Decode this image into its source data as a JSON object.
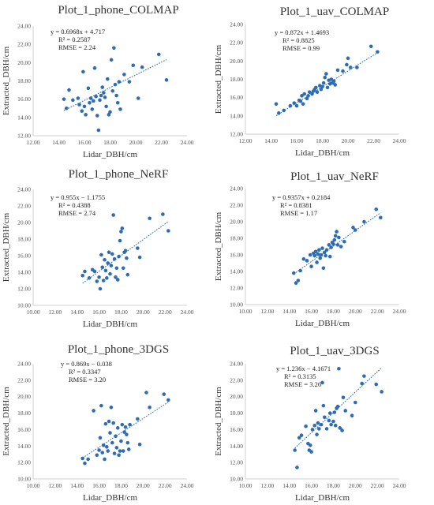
{
  "chart_data": [
    {
      "type": "scatter",
      "title": "Plot_1_phone_COLMAP",
      "xlabel": "Lidar_DBH/cm",
      "ylabel": "Extracted_DBH/cm",
      "xlim": [
        12,
        24
      ],
      "ylim": [
        12,
        24
      ],
      "xticks": [
        "12.00",
        "14.00",
        "16.00",
        "18.00",
        "20.00",
        "22.00",
        "24.00"
      ],
      "yticks": [
        "12.00",
        "14.00",
        "16.00",
        "18.00",
        "20.00",
        "22.00",
        "24.00"
      ],
      "equation": "y = 0.6968x + 4.717",
      "r2": "R² = 0.2587",
      "rmse": "RMSE = 2.24",
      "trendline": {
        "slope": 0.6968,
        "intercept": 4.717
      },
      "grid": false,
      "legend": "none",
      "points": [
        [
          14.4,
          16.0
        ],
        [
          14.6,
          15.0
        ],
        [
          14.8,
          17.0
        ],
        [
          15.1,
          15.9
        ],
        [
          15.5,
          16.1
        ],
        [
          15.6,
          15.4
        ],
        [
          15.8,
          14.7
        ],
        [
          15.9,
          19.0
        ],
        [
          16.0,
          15.2
        ],
        [
          16.1,
          14.3
        ],
        [
          16.3,
          17.2
        ],
        [
          16.4,
          15.6
        ],
        [
          16.5,
          16.1
        ],
        [
          16.6,
          14.9
        ],
        [
          16.7,
          15.8
        ],
        [
          16.8,
          19.4
        ],
        [
          16.9,
          16.3
        ],
        [
          17.0,
          14.2
        ],
        [
          17.1,
          12.6
        ],
        [
          17.2,
          15.9
        ],
        [
          17.3,
          16.4
        ],
        [
          17.4,
          17.3
        ],
        [
          17.5,
          16.7
        ],
        [
          17.6,
          16.2
        ],
        [
          17.7,
          15.2
        ],
        [
          17.8,
          18.2
        ],
        [
          17.9,
          14.3
        ],
        [
          18.0,
          14.6
        ],
        [
          18.1,
          20.3
        ],
        [
          18.2,
          16.9
        ],
        [
          18.3,
          21.6
        ],
        [
          18.4,
          17.6
        ],
        [
          18.5,
          16.4
        ],
        [
          18.6,
          15.6
        ],
        [
          18.7,
          17.9
        ],
        [
          18.8,
          14.9
        ],
        [
          19.5,
          17.9
        ],
        [
          19.8,
          19.7
        ],
        [
          20.2,
          16.1
        ],
        [
          20.5,
          19.5
        ],
        [
          21.8,
          20.9
        ],
        [
          22.4,
          18.1
        ],
        [
          19.1,
          18.7
        ]
      ]
    },
    {
      "type": "scatter",
      "title": "Plot_1_uav_COLMAP",
      "xlabel": "Lidar_DBH/cm",
      "ylabel": "Extracted_DBH/cm",
      "xlim": [
        12,
        24
      ],
      "ylim": [
        12,
        24
      ],
      "xticks": [
        "12.00",
        "14.00",
        "16.00",
        "18.00",
        "20.00",
        "22.00",
        "24.00"
      ],
      "yticks": [
        "12.00",
        "14.00",
        "16.00",
        "18.00",
        "20.00",
        "22.00",
        "24.00"
      ],
      "equation": "y = 0.872x + 1.4693",
      "r2": "R² = 0.8825",
      "rmse": "RMSE = 0.99",
      "trendline": {
        "slope": 0.872,
        "intercept": 1.4693
      },
      "grid": false,
      "legend": "none",
      "points": [
        [
          14.4,
          15.3
        ],
        [
          14.6,
          14.3
        ],
        [
          15.0,
          14.6
        ],
        [
          15.5,
          15.1
        ],
        [
          15.8,
          15.4
        ],
        [
          16.0,
          15.1
        ],
        [
          16.2,
          15.7
        ],
        [
          16.4,
          16.2
        ],
        [
          16.5,
          15.3
        ],
        [
          16.6,
          16.4
        ],
        [
          16.8,
          15.9
        ],
        [
          16.9,
          16.2
        ],
        [
          17.0,
          16.6
        ],
        [
          17.2,
          16.4
        ],
        [
          17.4,
          16.9
        ],
        [
          17.5,
          17.1
        ],
        [
          17.6,
          16.6
        ],
        [
          17.8,
          17.3
        ],
        [
          17.9,
          16.9
        ],
        [
          18.0,
          17.2
        ],
        [
          18.1,
          17.6
        ],
        [
          18.2,
          18.2
        ],
        [
          18.3,
          18.6
        ],
        [
          18.4,
          17.1
        ],
        [
          18.5,
          17.9
        ],
        [
          18.6,
          17.5
        ],
        [
          18.7,
          18.0
        ],
        [
          18.8,
          17.6
        ],
        [
          18.9,
          17.8
        ],
        [
          19.0,
          17.4
        ],
        [
          19.2,
          19.0
        ],
        [
          19.6,
          18.9
        ],
        [
          19.9,
          19.6
        ],
        [
          20.0,
          20.3
        ],
        [
          20.2,
          19.3
        ],
        [
          20.7,
          19.3
        ],
        [
          21.8,
          21.6
        ],
        [
          22.3,
          21.0
        ],
        [
          17.3,
          16.7
        ],
        [
          16.3,
          15.6
        ]
      ]
    },
    {
      "type": "scatter",
      "title": "Plot_1_phone_NeRF",
      "xlabel": "Lidar_DBH/cm",
      "ylabel": "Extracted_DBH/cm",
      "xlim": [
        10,
        24
      ],
      "ylim": [
        10,
        24
      ],
      "xticks": [
        "10.00",
        "12.00",
        "14.00",
        "16.00",
        "18.00",
        "20.00",
        "22.00",
        "24.00"
      ],
      "yticks": [
        "10.00",
        "12.00",
        "14.00",
        "16.00",
        "18.00",
        "20.00",
        "22.00",
        "24.00"
      ],
      "equation": "y = 0.955x − 1.1755",
      "r2": "R² = 0.4388",
      "rmse": "RMSE = 2.74",
      "trendline": {
        "slope": 0.955,
        "intercept": -1.1755
      },
      "grid": false,
      "legend": "none",
      "points": [
        [
          14.5,
          13.6
        ],
        [
          14.7,
          14.1
        ],
        [
          15.1,
          13.3
        ],
        [
          15.4,
          14.3
        ],
        [
          15.6,
          14.1
        ],
        [
          15.8,
          12.9
        ],
        [
          16.0,
          13.4
        ],
        [
          16.1,
          12.0
        ],
        [
          16.2,
          16.1
        ],
        [
          16.3,
          14.6
        ],
        [
          16.4,
          13.0
        ],
        [
          16.5,
          15.5
        ],
        [
          16.6,
          14.2
        ],
        [
          16.7,
          13.3
        ],
        [
          16.8,
          15.1
        ],
        [
          16.9,
          16.4
        ],
        [
          17.0,
          13.8
        ],
        [
          17.1,
          14.8
        ],
        [
          17.2,
          16.2
        ],
        [
          17.3,
          20.9
        ],
        [
          17.5,
          13.4
        ],
        [
          17.6,
          14.5
        ],
        [
          17.7,
          13.1
        ],
        [
          17.8,
          15.9
        ],
        [
          17.9,
          17.8
        ],
        [
          18.0,
          18.9
        ],
        [
          18.1,
          19.3
        ],
        [
          18.2,
          14.5
        ],
        [
          18.3,
          16.4
        ],
        [
          18.5,
          15.7
        ],
        [
          18.6,
          13.7
        ],
        [
          19.5,
          16.9
        ],
        [
          19.7,
          15.8
        ],
        [
          20.6,
          20.5
        ],
        [
          21.8,
          21.0
        ],
        [
          22.3,
          19.0
        ],
        [
          17.4,
          15.6
        ],
        [
          18.4,
          16.6
        ]
      ]
    },
    {
      "type": "scatter",
      "title": "Plot_1_uav_NeRF",
      "xlabel": "Lidar_DBH/cm",
      "ylabel": "Extracted_DBH/cm",
      "xlim": [
        10,
        24
      ],
      "ylim": [
        10,
        24
      ],
      "xticks": [
        "10.00",
        "12.00",
        "14.00",
        "16.00",
        "18.00",
        "20.00",
        "22.00",
        "24.00"
      ],
      "yticks": [
        "10.00",
        "12.00",
        "14.00",
        "16.00",
        "18.00",
        "20.00",
        "22.00",
        "24.00"
      ],
      "equation": "y = 0.9357x + 0.2184",
      "r2": "R² = 0.8381",
      "rmse": "RMSE = 1.17",
      "trendline": {
        "slope": 0.9357,
        "intercept": 0.2184
      },
      "grid": false,
      "legend": "none",
      "points": [
        [
          14.4,
          13.8
        ],
        [
          14.6,
          12.6
        ],
        [
          14.8,
          12.9
        ],
        [
          15.0,
          14.1
        ],
        [
          15.3,
          15.5
        ],
        [
          15.6,
          15.3
        ],
        [
          15.9,
          16.0
        ],
        [
          16.0,
          14.6
        ],
        [
          16.2,
          16.2
        ],
        [
          16.3,
          15.9
        ],
        [
          16.4,
          16.4
        ],
        [
          16.5,
          15.1
        ],
        [
          16.6,
          16.1
        ],
        [
          16.7,
          16.6
        ],
        [
          16.8,
          15.6
        ],
        [
          16.9,
          16.0
        ],
        [
          17.0,
          16.8
        ],
        [
          17.1,
          14.4
        ],
        [
          17.2,
          16.3
        ],
        [
          17.4,
          16.6
        ],
        [
          17.6,
          17.2
        ],
        [
          17.7,
          15.8
        ],
        [
          17.8,
          16.9
        ],
        [
          17.9,
          17.5
        ],
        [
          18.0,
          17.3
        ],
        [
          18.1,
          17.8
        ],
        [
          18.2,
          18.3
        ],
        [
          18.3,
          18.8
        ],
        [
          18.4,
          17.2
        ],
        [
          18.5,
          18.1
        ],
        [
          18.7,
          17.0
        ],
        [
          19.0,
          17.6
        ],
        [
          19.8,
          19.3
        ],
        [
          20.0,
          19.0
        ],
        [
          20.8,
          20.0
        ],
        [
          21.9,
          21.5
        ],
        [
          22.3,
          20.5
        ],
        [
          17.3,
          15.9
        ]
      ]
    },
    {
      "type": "scatter",
      "title": "Plot_1_phone_3DGS",
      "xlabel": "Lidar_DBH/cm",
      "ylabel": "Extracted_DBH/cm",
      "xlim": [
        10,
        24
      ],
      "ylim": [
        10,
        24
      ],
      "xticks": [
        "10.00",
        "12.00",
        "14.00",
        "16.00",
        "18.00",
        "20.00",
        "22.00",
        "24.00"
      ],
      "yticks": [
        "10.00",
        "12.00",
        "14.00",
        "16.00",
        "18.00",
        "20.00",
        "22.00",
        "24.00"
      ],
      "equation": "y = 0.869x − 0.038",
      "r2": "R² = 0.3347",
      "rmse": "RMSE = 3.20",
      "trendline": {
        "slope": 0.869,
        "intercept": -0.038
      },
      "grid": false,
      "legend": "none",
      "points": [
        [
          14.5,
          12.5
        ],
        [
          14.7,
          11.9
        ],
        [
          15.0,
          12.4
        ],
        [
          15.5,
          18.3
        ],
        [
          15.8,
          12.9
        ],
        [
          16.0,
          13.5
        ],
        [
          16.1,
          15.0
        ],
        [
          16.2,
          18.9
        ],
        [
          16.3,
          13.2
        ],
        [
          16.4,
          14.1
        ],
        [
          16.5,
          12.4
        ],
        [
          16.6,
          16.7
        ],
        [
          16.7,
          13.9
        ],
        [
          16.8,
          13.4
        ],
        [
          16.9,
          17.0
        ],
        [
          17.0,
          15.6
        ],
        [
          17.2,
          14.4
        ],
        [
          17.3,
          16.8
        ],
        [
          17.4,
          13.1
        ],
        [
          17.5,
          15.2
        ],
        [
          17.6,
          13.8
        ],
        [
          17.7,
          16.2
        ],
        [
          17.8,
          12.9
        ],
        [
          17.9,
          13.4
        ],
        [
          18.0,
          14.6
        ],
        [
          18.1,
          16.6
        ],
        [
          18.2,
          13.4
        ],
        [
          18.3,
          15.7
        ],
        [
          18.4,
          16.3
        ],
        [
          18.5,
          15.4
        ],
        [
          18.6,
          14.4
        ],
        [
          18.7,
          13.6
        ],
        [
          19.5,
          17.3
        ],
        [
          19.7,
          14.2
        ],
        [
          20.3,
          20.5
        ],
        [
          20.6,
          18.7
        ],
        [
          21.9,
          20.3
        ],
        [
          22.3,
          19.6
        ],
        [
          17.1,
          18.7
        ],
        [
          18.8,
          16.6
        ]
      ]
    },
    {
      "type": "scatter",
      "title": "Plot_1_uav_3DGS",
      "xlabel": "Lidar_DBH/cm",
      "ylabel": "Extracted_DBH/cm",
      "xlim": [
        10,
        24
      ],
      "ylim": [
        10,
        24
      ],
      "xticks": [
        "10.00",
        "12.00",
        "14.00",
        "16.00",
        "18.00",
        "20.00",
        "22.00",
        "24.00"
      ],
      "yticks": [
        "10.00",
        "12.00",
        "14.00",
        "16.00",
        "18.00",
        "20.00",
        "22.00",
        "24.00"
      ],
      "equation": "y = 1.236x − 4.1671",
      "r2": "R² = 0.3135",
      "rmse": "RMSE = 3.26",
      "trendline": {
        "slope": 1.236,
        "intercept": -4.1671
      },
      "grid": false,
      "legend": "none",
      "points": [
        [
          14.5,
          13.5
        ],
        [
          14.7,
          11.4
        ],
        [
          14.9,
          15.0
        ],
        [
          15.1,
          15.3
        ],
        [
          15.5,
          16.4
        ],
        [
          15.7,
          14.3
        ],
        [
          15.8,
          13.5
        ],
        [
          15.9,
          14.1
        ],
        [
          16.0,
          13.3
        ],
        [
          16.1,
          16.0
        ],
        [
          16.3,
          16.5
        ],
        [
          16.4,
          18.3
        ],
        [
          16.5,
          15.4
        ],
        [
          16.6,
          16.8
        ],
        [
          16.7,
          16.1
        ],
        [
          16.9,
          16.6
        ],
        [
          17.0,
          21.7
        ],
        [
          17.1,
          18.9
        ],
        [
          17.2,
          17.5
        ],
        [
          17.4,
          16.1
        ],
        [
          17.6,
          17.1
        ],
        [
          17.7,
          18.0
        ],
        [
          17.8,
          16.6
        ],
        [
          18.0,
          17.0
        ],
        [
          18.1,
          18.1
        ],
        [
          18.2,
          16.5
        ],
        [
          18.3,
          18.6
        ],
        [
          18.4,
          18.8
        ],
        [
          18.5,
          23.4
        ],
        [
          18.6,
          16.2
        ],
        [
          18.8,
          15.9
        ],
        [
          19.1,
          18.3
        ],
        [
          19.7,
          17.7
        ],
        [
          20.0,
          19.3
        ],
        [
          20.6,
          21.6
        ],
        [
          20.8,
          22.5
        ],
        [
          21.9,
          21.5
        ],
        [
          22.4,
          20.6
        ],
        [
          18.9,
          19.9
        ]
      ]
    }
  ]
}
